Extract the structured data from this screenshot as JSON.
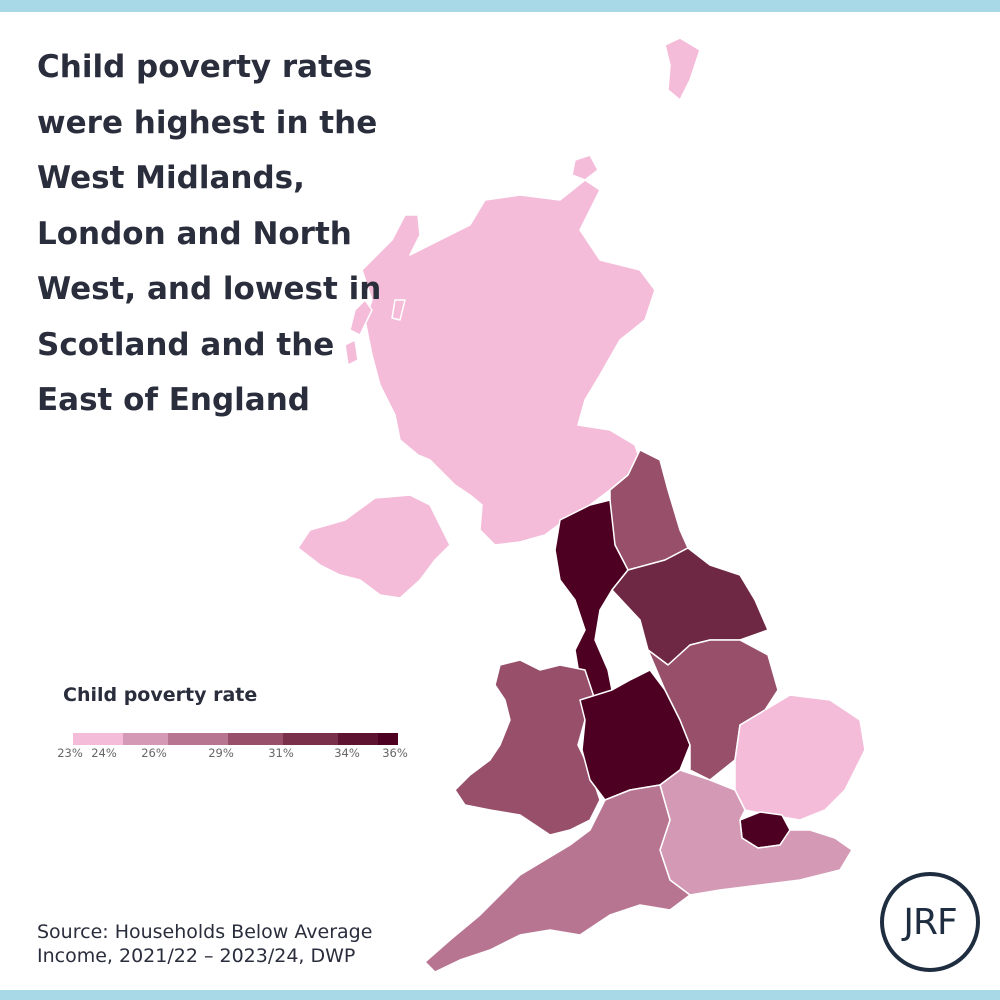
{
  "headline": {
    "lines": [
      "Child poverty rates",
      "were highest in the",
      "West Midlands,",
      "London and North",
      "West, and lowest in",
      "Scotland and the",
      "East of England"
    ]
  },
  "legend": {
    "title": "Child poverty rate",
    "ticks": [
      "23%",
      "24%",
      "26%",
      "29%",
      "31%",
      "34%",
      "36%"
    ],
    "colors": [
      "#f4bcd9",
      "#d49ab5",
      "#b87592",
      "#974f6a",
      "#7a2f4a",
      "#5e1430",
      "#4d0021"
    ]
  },
  "regions": [
    {
      "name": "Scotland",
      "color": "#f4bcd9"
    },
    {
      "name": "Northern Ireland",
      "color": "#f4bcd9"
    },
    {
      "name": "North East",
      "color": "#974f6a"
    },
    {
      "name": "North West",
      "color": "#4d0021"
    },
    {
      "name": "Yorkshire and the Humber",
      "color": "#6f2843"
    },
    {
      "name": "East Midlands",
      "color": "#974f6a"
    },
    {
      "name": "West Midlands",
      "color": "#4d0021"
    },
    {
      "name": "Wales",
      "color": "#974f6a"
    },
    {
      "name": "East of England",
      "color": "#f4bcd9"
    },
    {
      "name": "London",
      "color": "#4d0021"
    },
    {
      "name": "South East",
      "color": "#d49ab5"
    },
    {
      "name": "South West",
      "color": "#b87592"
    }
  ],
  "source": {
    "line1": "Source: Households Below Average",
    "line2": "Income, 2021/22 – 2023/24, DWP"
  },
  "logo": {
    "text": "JRF"
  }
}
